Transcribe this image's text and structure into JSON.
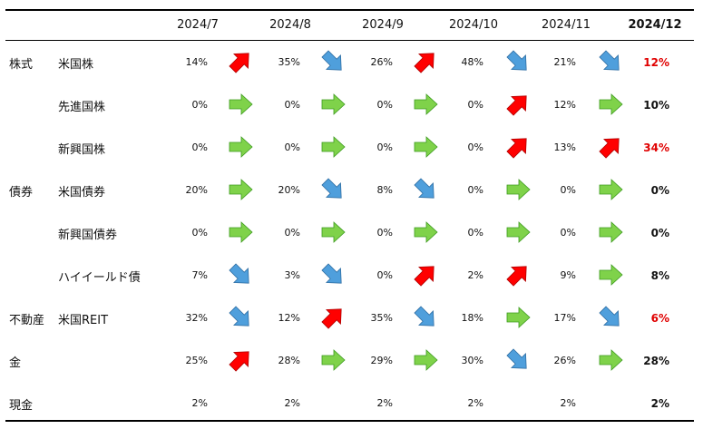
{
  "headers": [
    "2024/7",
    "2024/8",
    "2024/9",
    "2024/10",
    "2024/11",
    "2024/12"
  ],
  "colors": {
    "up": "#ff0000",
    "down": "#4f9fdc",
    "flat": "#7fd24a",
    "final_red": "#e00000"
  },
  "rows": [
    {
      "group": "株式",
      "name": "米国株",
      "values": [
        "14%",
        "35%",
        "26%",
        "48%",
        "21%",
        "12%"
      ],
      "arrows": [
        "up",
        "down",
        "up",
        "down",
        "down"
      ],
      "final_red": true
    },
    {
      "group": "",
      "name": "先進国株",
      "values": [
        "0%",
        "0%",
        "0%",
        "0%",
        "12%",
        "10%"
      ],
      "arrows": [
        "flat",
        "flat",
        "flat",
        "up",
        "flat"
      ],
      "final_red": false
    },
    {
      "group": "",
      "name": "新興国株",
      "values": [
        "0%",
        "0%",
        "0%",
        "0%",
        "13%",
        "34%"
      ],
      "arrows": [
        "flat",
        "flat",
        "flat",
        "up",
        "up"
      ],
      "final_red": true
    },
    {
      "group": "債券",
      "name": "米国債券",
      "values": [
        "20%",
        "20%",
        "8%",
        "0%",
        "0%",
        "0%"
      ],
      "arrows": [
        "flat",
        "down",
        "down",
        "flat",
        "flat"
      ],
      "final_red": false
    },
    {
      "group": "",
      "name": "新興国債券",
      "values": [
        "0%",
        "0%",
        "0%",
        "0%",
        "0%",
        "0%"
      ],
      "arrows": [
        "flat",
        "flat",
        "flat",
        "flat",
        "flat"
      ],
      "final_red": false
    },
    {
      "group": "",
      "name": "ハイイールド債",
      "values": [
        "7%",
        "3%",
        "0%",
        "2%",
        "9%",
        "8%"
      ],
      "arrows": [
        "down",
        "down",
        "up",
        "up",
        "flat"
      ],
      "final_red": false
    },
    {
      "group": "不動産",
      "name": "米国REIT",
      "values": [
        "32%",
        "12%",
        "35%",
        "18%",
        "17%",
        "6%"
      ],
      "arrows": [
        "down",
        "up",
        "down",
        "flat",
        "down"
      ],
      "final_red": true
    },
    {
      "group": "金",
      "name": "",
      "values": [
        "25%",
        "28%",
        "29%",
        "30%",
        "26%",
        "28%"
      ],
      "arrows": [
        "up",
        "flat",
        "flat",
        "down",
        "flat"
      ],
      "final_red": false
    },
    {
      "group": "現金",
      "name": "",
      "values": [
        "2%",
        "2%",
        "2%",
        "2%",
        "2%",
        "2%"
      ],
      "arrows": [],
      "final_red": false
    }
  ]
}
